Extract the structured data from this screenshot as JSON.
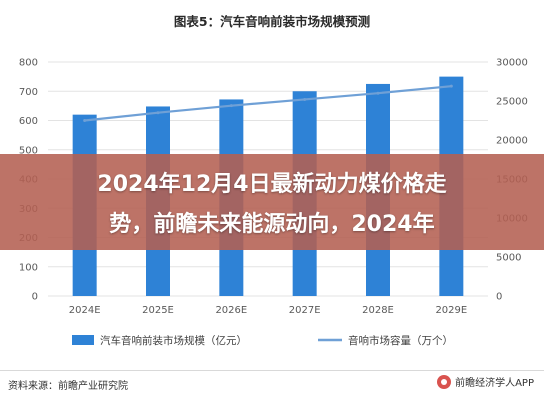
{
  "chart_data": {
    "type": "bar+line",
    "title": "图表5：汽车音响前装市场规模预测",
    "categories": [
      "2024E",
      "2025E",
      "2026E",
      "2027E",
      "2028E",
      "2029E"
    ],
    "series": [
      {
        "name": "汽车音响前装市场规模（亿元）",
        "type": "bar",
        "axis": "left",
        "values": [
          620,
          648,
          672,
          700,
          725,
          750
        ],
        "color": "#2e82d6"
      },
      {
        "name": "音响市场容量（万个）",
        "type": "line",
        "axis": "right",
        "values": [
          22500,
          23500,
          24400,
          25200,
          26000,
          26900
        ],
        "color": "#6fa0d6"
      }
    ],
    "left_axis": {
      "ylim": [
        0,
        800
      ],
      "ticks": [
        "0",
        "100",
        "200",
        "300",
        "400",
        "500",
        "600",
        "700",
        "800"
      ]
    },
    "right_axis": {
      "ylim": [
        0,
        30000
      ],
      "ticks": [
        "0",
        "5000",
        "10000",
        "15000",
        "20000",
        "25000",
        "30000"
      ]
    },
    "grid": true,
    "legend": "bottom"
  },
  "source": "资料来源：前瞻产业研究院",
  "logo_text": "前瞻经济学人APP",
  "watermark": "前瞻产业研究院",
  "banner": {
    "line1": "2024年12月4日最新动力煤价格走",
    "line2": "势，前瞻未来能源动向，2024年"
  }
}
